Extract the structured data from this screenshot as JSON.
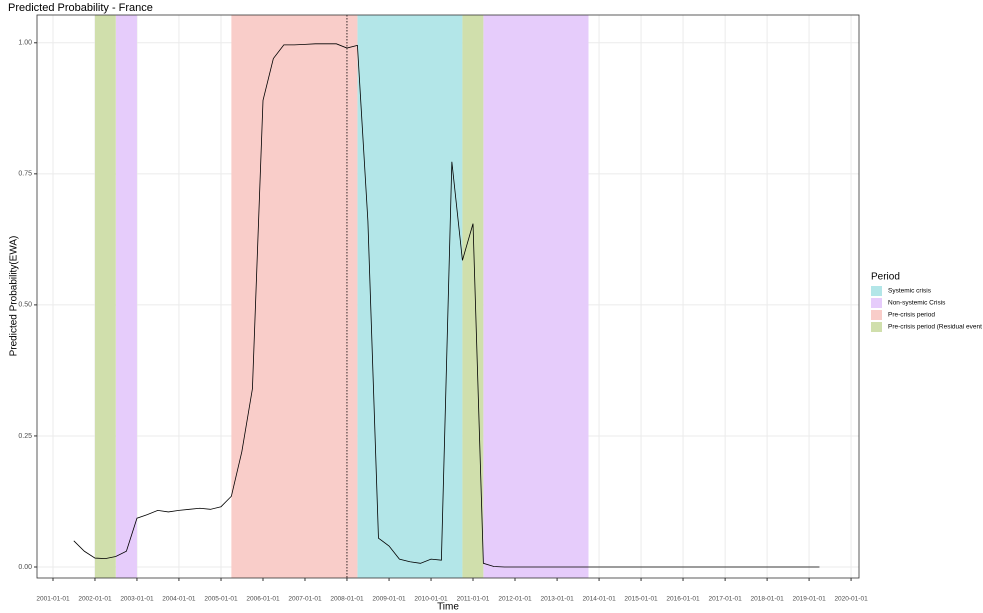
{
  "chart_data": {
    "type": "line",
    "title": "Predicted Probability - France",
    "x_label": "Time",
    "y_label": "Predicted Probability(EWA)",
    "legend_title": "Period",
    "x": [
      "2001-07-01",
      "2001-10-01",
      "2002-01-01",
      "2002-04-01",
      "2002-07-01",
      "2002-10-01",
      "2003-01-01",
      "2003-04-01",
      "2003-07-01",
      "2003-10-01",
      "2004-01-01",
      "2004-04-01",
      "2004-07-01",
      "2004-10-01",
      "2005-01-01",
      "2005-04-01",
      "2005-07-01",
      "2005-10-01",
      "2006-01-01",
      "2006-04-01",
      "2006-07-01",
      "2006-10-01",
      "2007-01-01",
      "2007-04-01",
      "2007-07-01",
      "2007-10-01",
      "2008-01-01",
      "2008-04-01",
      "2008-07-01",
      "2008-10-01",
      "2009-01-01",
      "2009-04-01",
      "2009-07-01",
      "2009-10-01",
      "2010-01-01",
      "2010-04-01",
      "2010-07-01",
      "2010-10-01",
      "2011-01-01",
      "2011-04-01",
      "2011-07-01",
      "2011-10-01",
      "2012-01-01",
      "2012-04-01",
      "2012-07-01",
      "2012-10-01",
      "2013-01-01",
      "2013-04-01",
      "2013-07-01",
      "2013-10-01",
      "2014-01-01",
      "2014-04-01",
      "2014-07-01",
      "2014-10-01",
      "2015-01-01",
      "2015-04-01",
      "2015-07-01",
      "2015-10-01",
      "2016-01-01",
      "2016-04-01",
      "2016-07-01",
      "2016-10-01",
      "2017-01-01",
      "2017-04-01",
      "2017-07-01",
      "2017-10-01",
      "2018-01-01",
      "2018-04-01",
      "2018-07-01",
      "2018-10-01",
      "2019-01-01",
      "2019-04-01"
    ],
    "values": [
      0.05,
      0.03,
      0.017,
      0.016,
      0.02,
      0.03,
      0.093,
      0.1,
      0.108,
      0.105,
      0.108,
      0.11,
      0.112,
      0.11,
      0.115,
      0.135,
      0.22,
      0.34,
      0.89,
      0.97,
      0.996,
      0.996,
      0.997,
      0.998,
      0.998,
      0.998,
      0.99,
      0.995,
      0.66,
      0.055,
      0.04,
      0.015,
      0.01,
      0.007,
      0.015,
      0.013,
      0.773,
      0.585,
      0.655,
      0.007,
      0.001,
      0,
      0,
      0,
      0,
      0,
      0,
      0,
      0,
      0,
      0,
      0,
      0,
      0,
      0,
      0,
      0,
      0,
      0,
      0,
      0,
      0,
      0,
      0,
      0,
      0,
      0,
      0,
      0,
      0,
      0,
      0
    ],
    "color": "#000000",
    "periods": [
      {
        "name": "Systemic crisis",
        "color": "#b3e6e8",
        "ranges": [
          [
            "2008-04-01",
            "2010-10-01"
          ]
        ]
      },
      {
        "name": "Non-systemic Crisis",
        "color": "#e6ccfb",
        "ranges": [
          [
            "2002-07-01",
            "2003-01-01"
          ],
          [
            "2011-04-01",
            "2013-10-01"
          ]
        ]
      },
      {
        "name": "Pre-crisis period",
        "color": "#f9cdc9",
        "ranges": [
          [
            "2005-04-01",
            "2008-04-01"
          ]
        ]
      },
      {
        "name": "Pre-crisis period (Residual event",
        "color": "#d0dfac",
        "ranges": [
          [
            "2002-01-01",
            "2002-07-01"
          ],
          [
            "2010-10-01",
            "2011-04-01"
          ]
        ]
      }
    ],
    "vline": "2008-01-01",
    "xlim": [
      "2000-08-15",
      "2020-03-10"
    ],
    "xticks": [
      "2001-01-01",
      "2002-01-01",
      "2003-01-01",
      "2004-01-01",
      "2005-01-01",
      "2006-01-01",
      "2007-01-01",
      "2008-01-01",
      "2009-01-01",
      "2010-01-01",
      "2011-01-01",
      "2012-01-01",
      "2013-01-01",
      "2014-01-01",
      "2015-01-01",
      "2016-01-01",
      "2017-01-01",
      "2018-01-01",
      "2019-01-01",
      "2020-01-01"
    ],
    "ylim": [
      -0.021,
      1.053
    ],
    "yticks": [
      {
        "value": 0,
        "label": "0.00"
      },
      {
        "value": 0.25,
        "label": "0.25"
      },
      {
        "value": 0.5,
        "label": "0.50"
      },
      {
        "value": 0.75,
        "label": "0.75"
      },
      {
        "value": 1,
        "label": "1.00"
      }
    ],
    "grid": true
  }
}
